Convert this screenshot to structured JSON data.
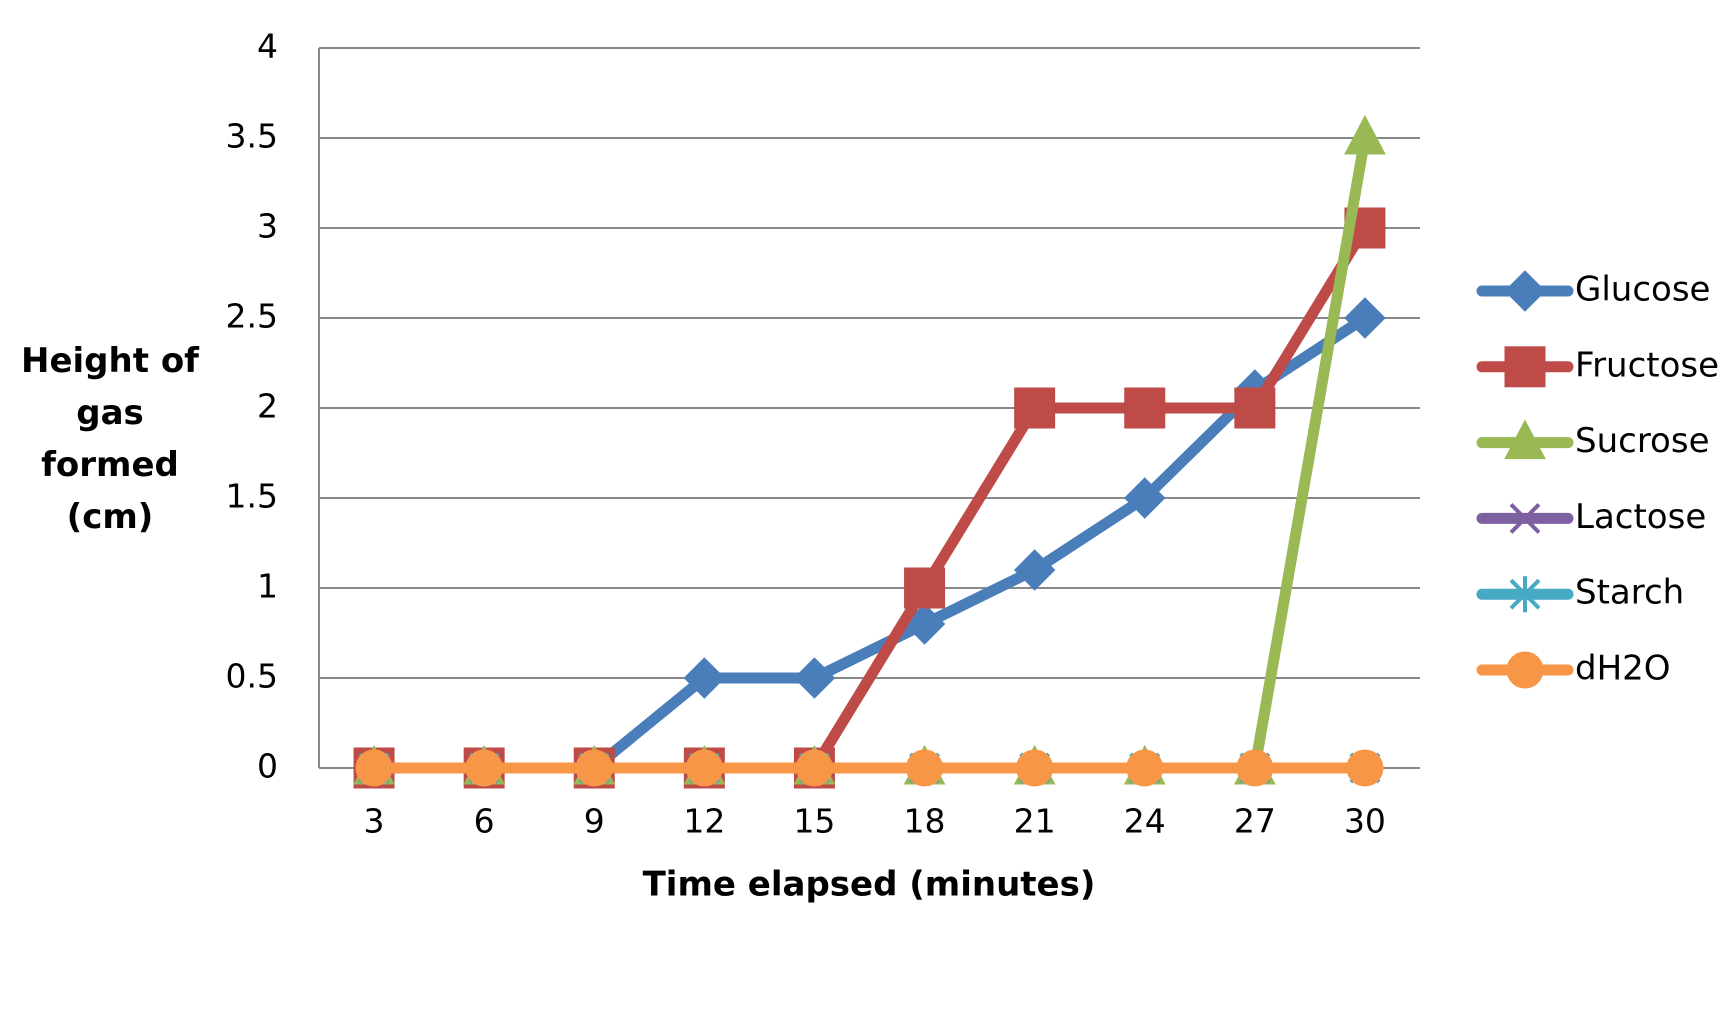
{
  "chart_data": {
    "type": "line",
    "x_label": "Time elapsed (minutes)",
    "y_label": "Height of gas formed (cm)",
    "categories": [
      "3",
      "6",
      "9",
      "12",
      "15",
      "18",
      "21",
      "24",
      "27",
      "30"
    ],
    "series": [
      {
        "name": "Glucose",
        "color": "#4a7ebb",
        "marker": "diamond",
        "values": [
          0,
          0,
          0,
          0.5,
          0.5,
          0.8,
          1.1,
          1.5,
          2.1,
          2.5
        ]
      },
      {
        "name": "Fructose",
        "color": "#be4b48",
        "marker": "square",
        "values": [
          0,
          0,
          0,
          0,
          0,
          1,
          2,
          2,
          2,
          3
        ]
      },
      {
        "name": "Sucrose",
        "color": "#98b954",
        "marker": "triangle",
        "values": [
          0,
          0,
          0,
          0,
          0,
          0,
          0,
          0,
          0,
          3.5
        ]
      },
      {
        "name": "Lactose",
        "color": "#7d60a0",
        "marker": "x",
        "values": [
          0,
          0,
          0,
          0,
          0,
          0,
          0,
          0,
          0,
          0
        ]
      },
      {
        "name": "Starch",
        "color": "#46aac5",
        "marker": "star",
        "values": [
          0,
          0,
          0,
          0,
          0,
          0,
          0,
          0,
          0,
          0
        ]
      },
      {
        "name": "dH2O",
        "color": "#f79646",
        "marker": "circle",
        "values": [
          0,
          0,
          0,
          0,
          0,
          0,
          0,
          0,
          0,
          0
        ]
      }
    ],
    "ylim": [
      0,
      4
    ],
    "yticks": [
      0,
      0.5,
      1,
      1.5,
      2,
      2.5,
      3,
      3.5,
      4
    ],
    "grid": true,
    "legend": "right"
  }
}
